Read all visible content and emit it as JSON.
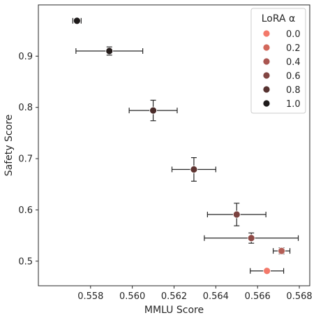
{
  "chart_data": {
    "type": "scatter",
    "title": "",
    "xlabel": "MMLU Score",
    "ylabel": "Safety Score",
    "xlim": [
      0.5555,
      0.5685
    ],
    "ylim": [
      0.452,
      1.0
    ],
    "xticks": [
      "0.558",
      "0.560",
      "0.562",
      "0.564",
      "0.566",
      "0.568"
    ],
    "yticks": [
      "0.5",
      "0.6",
      "0.7",
      "0.8",
      "0.9"
    ],
    "grid": false,
    "legend": {
      "title": "LoRA α",
      "position": "top-right",
      "entries": [
        {
          "label": "0.0",
          "color": "#f3796a"
        },
        {
          "label": "0.2",
          "color": "#d2685b"
        },
        {
          "label": "0.4",
          "color": "#aa5550"
        },
        {
          "label": "0.6",
          "color": "#814542"
        },
        {
          "label": "0.8",
          "color": "#573230"
        },
        {
          "label": "1.0",
          "color": "#1e1a1a"
        }
      ]
    },
    "points": [
      {
        "x": 0.55735,
        "y": 0.969,
        "xerr": 0.0002,
        "yerr": 0.0,
        "color": "#1e1a1a"
      },
      {
        "x": 0.5589,
        "y": 0.91,
        "xerr": 0.0016,
        "yerr": 0.008,
        "color": "#241c1b"
      },
      {
        "x": 0.561,
        "y": 0.794,
        "xerr": 0.00115,
        "yerr": 0.02,
        "color": "#4a2c2a"
      },
      {
        "x": 0.56295,
        "y": 0.679,
        "xerr": 0.00105,
        "yerr": 0.023,
        "color": "#5e3431"
      },
      {
        "x": 0.565,
        "y": 0.591,
        "xerr": 0.0014,
        "yerr": 0.022,
        "color": "#7a423f"
      },
      {
        "x": 0.5657,
        "y": 0.545,
        "xerr": 0.00225,
        "yerr": 0.01,
        "color": "#8e4a46"
      },
      {
        "x": 0.56715,
        "y": 0.52,
        "xerr": 0.0004,
        "yerr": 0.006,
        "color": "#b45e56"
      },
      {
        "x": 0.56645,
        "y": 0.481,
        "xerr": 0.0008,
        "yerr": 0.0,
        "color": "#f3796a"
      }
    ]
  }
}
